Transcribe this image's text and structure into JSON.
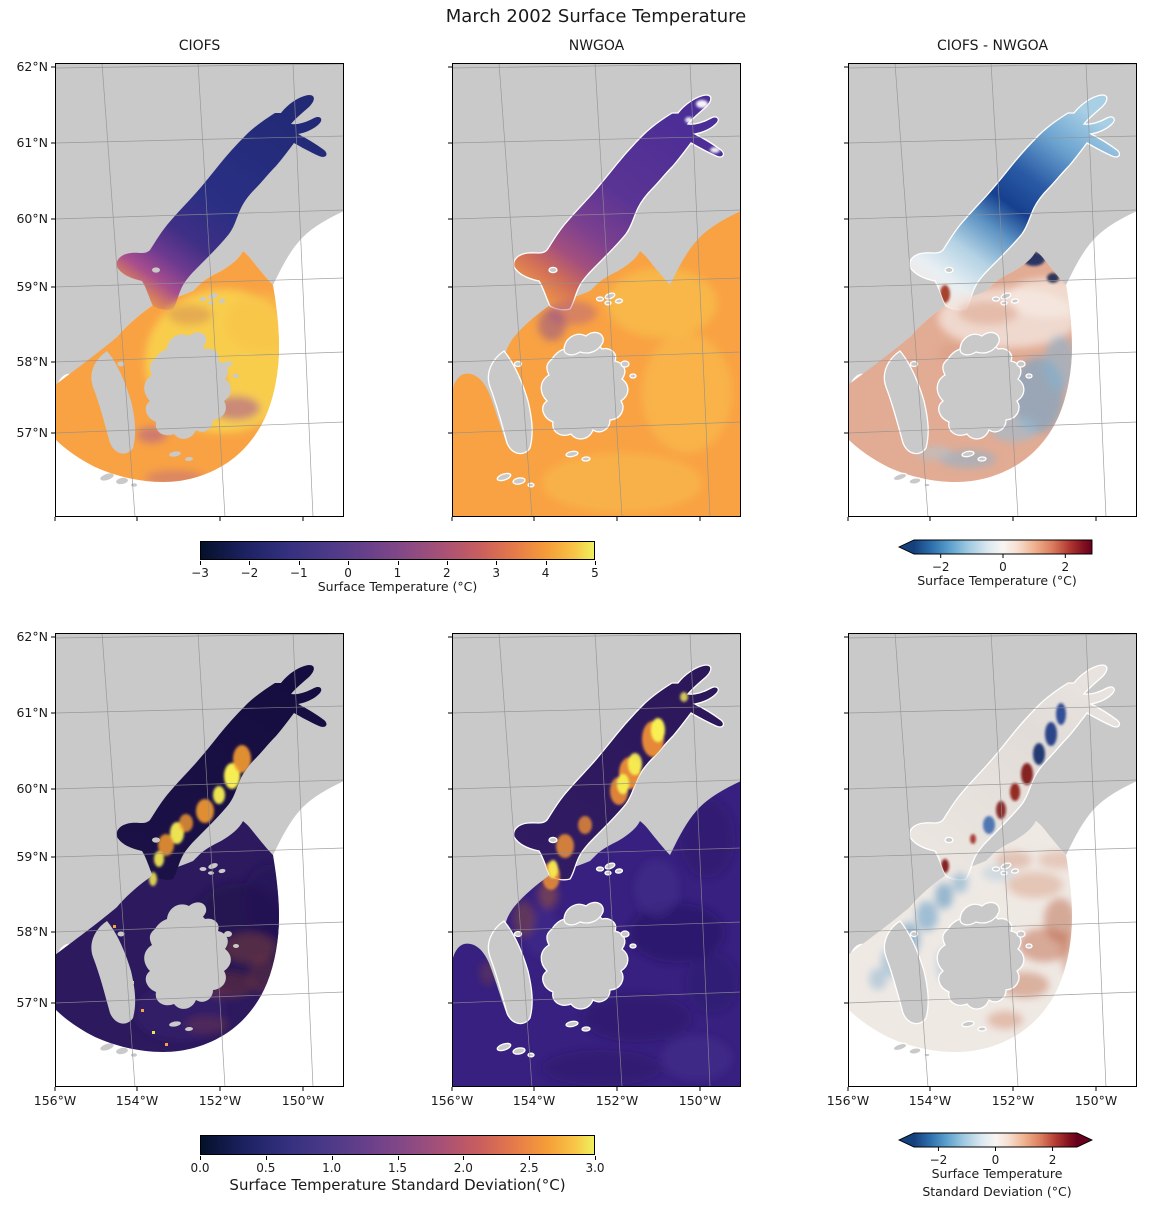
{
  "title": "March 2002 Surface Temperature",
  "panel_titles": [
    "CIOFS",
    "NWGOA",
    "CIOFS - NWGOA"
  ],
  "axes": {
    "lat": [
      "62°N",
      "61°N",
      "60°N",
      "59°N",
      "58°N",
      "57°N"
    ],
    "lon": [
      "156°W",
      "154°W",
      "152°W",
      "150°W"
    ]
  },
  "colorbars": [
    {
      "id": "temperature",
      "label": "Surface Temperature (°C)",
      "ticks": [
        "−3",
        "−2",
        "−1",
        "0",
        "1",
        "2",
        "3",
        "4",
        "5"
      ],
      "cmap": "thermal",
      "vmin": -3,
      "vmax": 5,
      "extend": "none"
    },
    {
      "id": "temperature-difference",
      "label": "Surface Temperature (°C)",
      "ticks": [
        "−2",
        "0",
        "2"
      ],
      "cmap": "RdBu_r",
      "vmin": -3,
      "vmax": 3,
      "extend": "min"
    },
    {
      "id": "std",
      "label": "Surface Temperature Standard Deviation(°C)",
      "ticks": [
        "0.0",
        "0.5",
        "1.0",
        "1.5",
        "2.0",
        "2.5",
        "3.0"
      ],
      "cmap": "thermal",
      "vmin": 0,
      "vmax": 3,
      "extend": "none"
    },
    {
      "id": "std-difference",
      "label_line1": "Surface Temperature",
      "label_line2": "Standard Deviation (°C)",
      "ticks": [
        "−2",
        "0",
        "2"
      ],
      "cmap": "RdBu_r",
      "vmin": -3,
      "vmax": 3,
      "extend": "both"
    }
  ],
  "colors": {
    "land": "#c9c9c9",
    "no_data": "#ffffff",
    "gridline": "#909090",
    "ciofs_inlet_cold": "#252d7d",
    "nwgoa_inlet": "#4a2d96",
    "gulf_warm": "#f9a243",
    "gulf_warmest": "#f8d24d",
    "std_dark": "#2c195e",
    "std_high": "#f7ee52",
    "diff_blue": "#16408f",
    "diff_red": "#b33a33"
  },
  "chart_data": {
    "type": "heatmap",
    "subtype": "geographic model comparison, 2 rows x 3 columns of maps",
    "title": "March 2002 Surface Temperature",
    "region": "Cook Inlet, Kenai Peninsula, Kodiak Island and Gulf of Alaska",
    "lat_ticks_deg_n": [
      62,
      61,
      60,
      59,
      58,
      57
    ],
    "lon_ticks_deg_w": [
      156,
      154,
      152,
      150
    ],
    "rows": [
      {
        "variable": "Surface Temperature (°C)",
        "colorbar": {
          "cmap": "thermal",
          "vmin": -3,
          "vmax": 5,
          "ticks": [
            -3,
            -2,
            -1,
            0,
            1,
            2,
            3,
            4,
            5
          ]
        },
        "panels": [
          {
            "name": "CIOFS",
            "summary": "Cook Inlet water very cold, about -3 to -1 °C (dark navy); Gulf of Alaska 3 to 5 °C (orange/yellow) with purple 1-2 °C patches near Kodiak; fan-shaped model domain, white (no data) beyond its offshore edge"
          },
          {
            "name": "NWGOA",
            "summary": "Inlet about -1 to 1 °C (violet/purple), gulf 3 to 5 °C everywhere; full rectangular ocean coverage; small white gaps at inlet head"
          },
          {
            "name": "CIOFS - NWGOA",
            "cmap": "RdBu_r",
            "vmin": -3,
            "vmax": 3,
            "summary": "Inlet up to ~3 °C colder in CIOFS (dark blue), gulf ~0.5-1 °C warmer (light red) with blue eddies east and south of Kodiak; difference shown only where domains overlap"
          }
        ]
      },
      {
        "variable": "Surface Temperature Standard Deviation (°C)",
        "colorbar": {
          "cmap": "thermal",
          "vmin": 0,
          "vmax": 3,
          "ticks": [
            0.0,
            0.5,
            1.0,
            1.5,
            2.0,
            2.5,
            3.0
          ]
        },
        "panels": [
          {
            "name": "CIOFS",
            "summary": "Std dev near 0-0.5 °C over most of the dark-purple domain, with bright yellow/orange streaks up to ~3 °C along mid Cook Inlet and speckles along the western coast"
          },
          {
            "name": "NWGOA",
            "summary": "Deep indigo (0-0.5 °C) gulf with eddy swirl texture; bright orange/yellow high-variability band (2-3 °C) along the inlet axis extending toward Shelikof Strait"
          },
          {
            "name": "CIOFS - NWGOA",
            "cmap": "RdBu_r",
            "vmin": -3,
            "vmax": 3,
            "summary": "Mostly near zero (white); dark blue streaks (CIOFS less variable) in upper inlet and along Shelikof Strait; dark red streaks (CIOFS more variable) in mid-inlet and red eddies east of Kodiak"
          }
        ]
      }
    ]
  }
}
